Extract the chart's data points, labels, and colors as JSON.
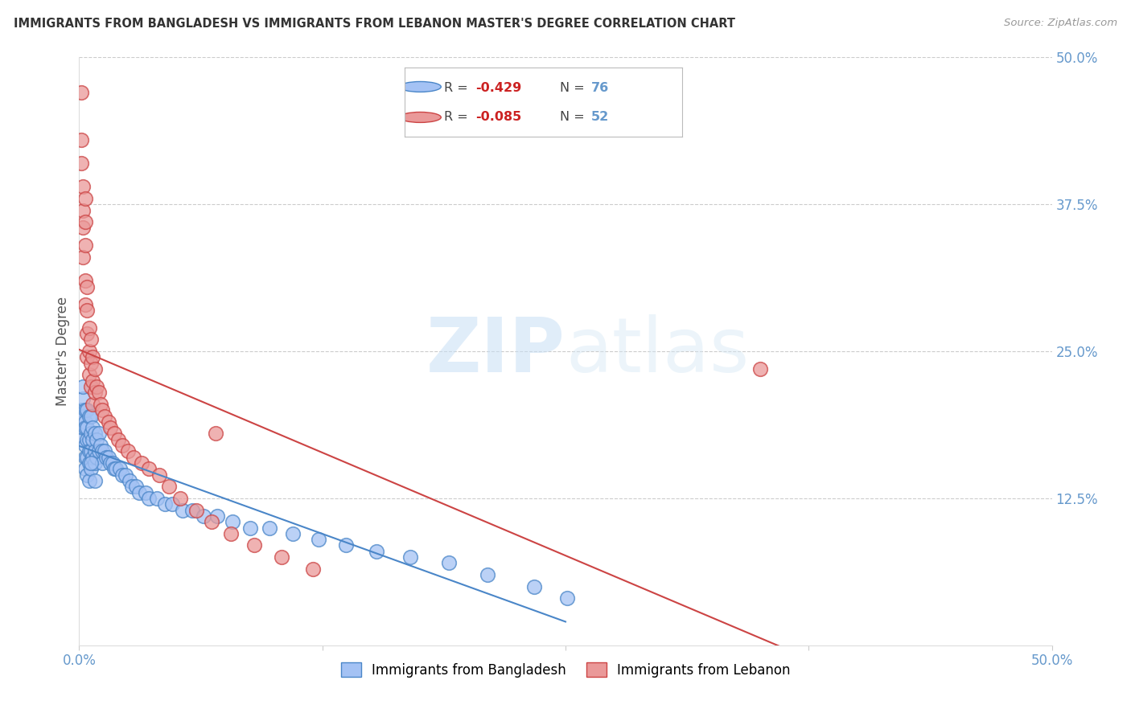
{
  "title": "IMMIGRANTS FROM BANGLADESH VS IMMIGRANTS FROM LEBANON MASTER'S DEGREE CORRELATION CHART",
  "source": "Source: ZipAtlas.com",
  "ylabel": "Master's Degree",
  "x_min": 0.0,
  "x_max": 0.5,
  "y_min": 0.0,
  "y_max": 0.5,
  "legend_r1": "-0.429",
  "legend_n1": "76",
  "legend_r2": "-0.085",
  "legend_n2": "52",
  "color_bangladesh": "#a4c2f4",
  "color_lebanon": "#ea9999",
  "color_bangladesh_line": "#4a86c8",
  "color_lebanon_line": "#cc4444",
  "watermark_zip": "ZIP",
  "watermark_atlas": "atlas",
  "background_color": "#ffffff",
  "grid_color": "#cccccc",
  "axis_label_color": "#6699cc",
  "bangladesh_x": [
    0.001,
    0.001,
    0.002,
    0.002,
    0.002,
    0.002,
    0.003,
    0.003,
    0.003,
    0.003,
    0.003,
    0.003,
    0.004,
    0.004,
    0.004,
    0.004,
    0.004,
    0.005,
    0.005,
    0.005,
    0.005,
    0.005,
    0.006,
    0.006,
    0.006,
    0.006,
    0.007,
    0.007,
    0.007,
    0.008,
    0.008,
    0.008,
    0.009,
    0.009,
    0.01,
    0.01,
    0.011,
    0.012,
    0.012,
    0.013,
    0.014,
    0.015,
    0.016,
    0.017,
    0.018,
    0.019,
    0.021,
    0.022,
    0.024,
    0.026,
    0.027,
    0.029,
    0.031,
    0.034,
    0.036,
    0.04,
    0.044,
    0.048,
    0.053,
    0.058,
    0.064,
    0.071,
    0.079,
    0.088,
    0.098,
    0.11,
    0.123,
    0.137,
    0.153,
    0.17,
    0.19,
    0.21,
    0.234,
    0.006,
    0.008,
    0.251
  ],
  "bangladesh_y": [
    0.2,
    0.175,
    0.185,
    0.195,
    0.21,
    0.22,
    0.19,
    0.2,
    0.185,
    0.17,
    0.16,
    0.15,
    0.2,
    0.185,
    0.175,
    0.16,
    0.145,
    0.195,
    0.175,
    0.165,
    0.155,
    0.14,
    0.195,
    0.18,
    0.165,
    0.15,
    0.185,
    0.175,
    0.16,
    0.18,
    0.165,
    0.155,
    0.175,
    0.16,
    0.18,
    0.165,
    0.17,
    0.165,
    0.155,
    0.165,
    0.16,
    0.16,
    0.155,
    0.155,
    0.15,
    0.15,
    0.15,
    0.145,
    0.145,
    0.14,
    0.135,
    0.135,
    0.13,
    0.13,
    0.125,
    0.125,
    0.12,
    0.12,
    0.115,
    0.115,
    0.11,
    0.11,
    0.105,
    0.1,
    0.1,
    0.095,
    0.09,
    0.085,
    0.08,
    0.075,
    0.07,
    0.06,
    0.05,
    0.155,
    0.14,
    0.04
  ],
  "lebanon_x": [
    0.001,
    0.001,
    0.001,
    0.002,
    0.002,
    0.002,
    0.002,
    0.003,
    0.003,
    0.003,
    0.003,
    0.003,
    0.004,
    0.004,
    0.004,
    0.004,
    0.005,
    0.005,
    0.005,
    0.006,
    0.006,
    0.006,
    0.007,
    0.007,
    0.007,
    0.008,
    0.008,
    0.009,
    0.01,
    0.011,
    0.012,
    0.013,
    0.015,
    0.016,
    0.018,
    0.02,
    0.022,
    0.025,
    0.028,
    0.032,
    0.036,
    0.041,
    0.046,
    0.052,
    0.06,
    0.068,
    0.078,
    0.09,
    0.104,
    0.12,
    0.35,
    0.07
  ],
  "lebanon_y": [
    0.47,
    0.43,
    0.41,
    0.39,
    0.37,
    0.355,
    0.33,
    0.38,
    0.36,
    0.34,
    0.31,
    0.29,
    0.305,
    0.285,
    0.265,
    0.245,
    0.27,
    0.25,
    0.23,
    0.26,
    0.24,
    0.22,
    0.245,
    0.225,
    0.205,
    0.235,
    0.215,
    0.22,
    0.215,
    0.205,
    0.2,
    0.195,
    0.19,
    0.185,
    0.18,
    0.175,
    0.17,
    0.165,
    0.16,
    0.155,
    0.15,
    0.145,
    0.135,
    0.125,
    0.115,
    0.105,
    0.095,
    0.085,
    0.075,
    0.065,
    0.235,
    0.18
  ]
}
